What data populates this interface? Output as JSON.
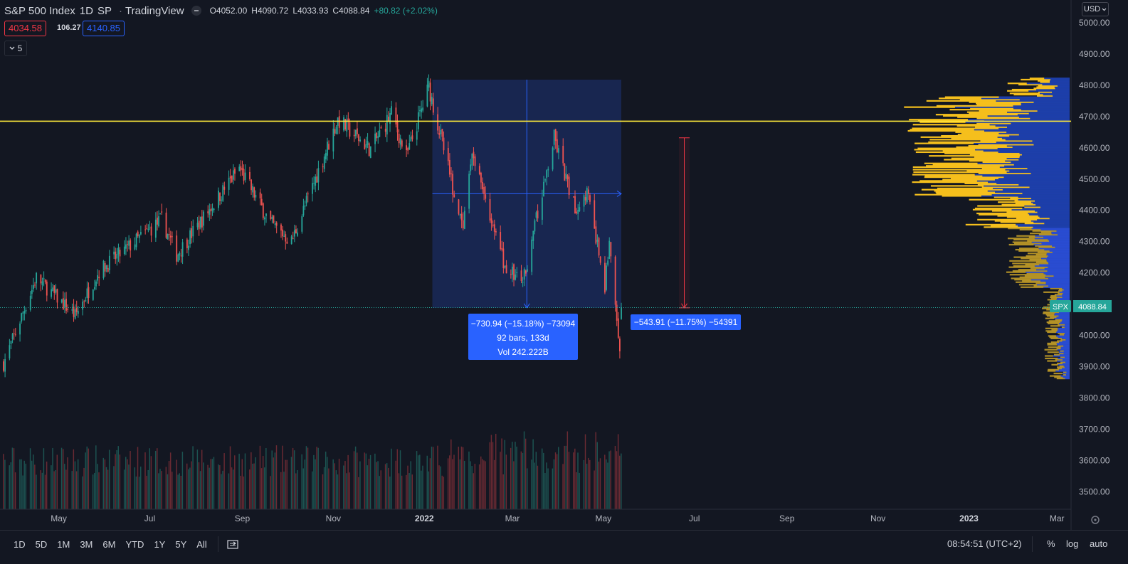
{
  "header": {
    "symbol": "S&P 500 Index",
    "interval": "1D",
    "exchange": "SP",
    "source": "TradingView",
    "open": "O4052.00",
    "high": "H4090.72",
    "low": "L4033.93",
    "close": "C4088.84",
    "change": "+80.82 (+2.02%)",
    "bid": "4034.58",
    "spread": "106.27",
    "ask": "4140.85",
    "indicators_count": "5"
  },
  "currency": "USD",
  "price_axis": {
    "ticks": [
      "5000.00",
      "4900.00",
      "4800.00",
      "4700.00",
      "4600.00",
      "4500.00",
      "4400.00",
      "4300.00",
      "4200.00",
      "4100.00",
      "4000.00",
      "3900.00",
      "3800.00",
      "3700.00",
      "3600.00",
      "3500.00"
    ],
    "symbol_label": "SPX",
    "last_price": "4088.84"
  },
  "time_axis": {
    "ticks": [
      "May",
      "Jul",
      "Sep",
      "Nov",
      "2022",
      "Mar",
      "May",
      "Jul",
      "Sep",
      "Nov",
      "2023",
      "Mar"
    ]
  },
  "measure_tool": {
    "line1": "−730.94 (−15.18%) −73094",
    "line2": "92 bars, 133d",
    "line3": "Vol 242.222B"
  },
  "measure_tool_2": {
    "text": "−543.91 (−11.75%) −54391"
  },
  "timeframes": [
    "1D",
    "5D",
    "1M",
    "3M",
    "6M",
    "YTD",
    "1Y",
    "5Y",
    "All"
  ],
  "status_bar": {
    "time": "08:54:51 (UTC+2)",
    "percent": "%",
    "log": "log",
    "auto": "auto"
  },
  "colors": {
    "background": "#131722",
    "up": "#26a69a",
    "down": "#ef5350",
    "horizontal_line": "#ffeb3b",
    "range_fill": "#1e3a8a",
    "profile_up": "#f5bf1c",
    "profile_down": "#2a4ed8",
    "tooltip": "#2962ff"
  },
  "chart_data": {
    "type": "candlestick",
    "title": "S&P 500 Index",
    "interval": "1D",
    "x_range": [
      "2021-04",
      "2023-03"
    ],
    "ylim": [
      3450,
      5000
    ],
    "anchors": [
      {
        "t": "2021-03-25",
        "price": 3910
      },
      {
        "t": "2021-04-16",
        "price": 4185
      },
      {
        "t": "2021-05-12",
        "price": 4063
      },
      {
        "t": "2021-05-28",
        "price": 4205
      },
      {
        "t": "2021-07-09",
        "price": 4370
      },
      {
        "t": "2021-07-19",
        "price": 4258
      },
      {
        "t": "2021-08-30",
        "price": 4535
      },
      {
        "t": "2021-09-20",
        "price": 4358
      },
      {
        "t": "2021-10-04",
        "price": 4300
      },
      {
        "t": "2021-11-04",
        "price": 4690
      },
      {
        "t": "2021-11-26",
        "price": 4595
      },
      {
        "t": "2021-12-10",
        "price": 4710
      },
      {
        "t": "2021-12-20",
        "price": 4570
      },
      {
        "t": "2022-01-04",
        "price": 4796
      },
      {
        "t": "2022-01-27",
        "price": 4330
      },
      {
        "t": "2022-02-02",
        "price": 4590
      },
      {
        "t": "2022-02-24",
        "price": 4220
      },
      {
        "t": "2022-03-08",
        "price": 4170
      },
      {
        "t": "2022-03-29",
        "price": 4631
      },
      {
        "t": "2022-04-12",
        "price": 4400
      },
      {
        "t": "2022-04-20",
        "price": 4460
      },
      {
        "t": "2022-05-02",
        "price": 4155
      },
      {
        "t": "2022-05-05",
        "price": 4300
      },
      {
        "t": "2022-05-12",
        "price": 3930
      },
      {
        "t": "2022-05-13",
        "price": 4088.84
      }
    ],
    "horizontal_line": 4685,
    "measures": [
      {
        "from": "2022-01-04",
        "to": "2022-05-13",
        "from_price": 4818,
        "to_price": 4088,
        "change": "−730.94 (−15.18%)"
      },
      {
        "from": "2022-03-29",
        "to": "2022-05-13",
        "from_price": 4632,
        "to_price": 4088,
        "change": "−543.91 (−11.75%)"
      }
    ]
  }
}
